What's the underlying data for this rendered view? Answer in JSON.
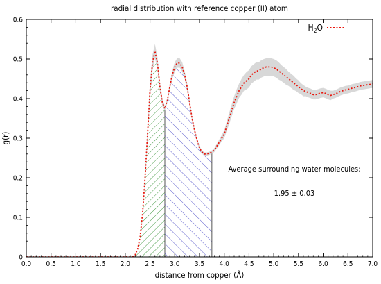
{
  "chart_data": {
    "type": "line",
    "title": "radial distribution with reference copper (II) atom",
    "xlabel": "distance from copper (Å)",
    "ylabel": "g(r)",
    "xlim": [
      0.0,
      7.0
    ],
    "ylim": [
      0.0,
      0.6
    ],
    "xticks": [
      "0.0",
      "0.5",
      "1.0",
      "1.5",
      "2.0",
      "2.5",
      "3.0",
      "3.5",
      "4.0",
      "4.5",
      "5.0",
      "5.5",
      "6.0",
      "6.5",
      "7.0"
    ],
    "yticks": [
      "0",
      "0.1",
      "0.2",
      "0.3",
      "0.4",
      "0.5",
      "0.6"
    ],
    "grid": false,
    "legend_position": "top-right",
    "series": [
      {
        "name": "H2O",
        "color": "#e8160c",
        "linestyle": "dotted",
        "x": [
          0.0,
          0.5,
          1.0,
          1.5,
          2.0,
          2.15,
          2.2,
          2.25,
          2.3,
          2.35,
          2.4,
          2.45,
          2.5,
          2.55,
          2.6,
          2.65,
          2.7,
          2.75,
          2.8,
          2.85,
          2.9,
          2.95,
          3.0,
          3.05,
          3.1,
          3.15,
          3.2,
          3.25,
          3.3,
          3.35,
          3.4,
          3.45,
          3.5,
          3.55,
          3.6,
          3.65,
          3.7,
          3.75,
          3.8,
          3.85,
          3.9,
          3.95,
          4.0,
          4.05,
          4.1,
          4.15,
          4.2,
          4.25,
          4.3,
          4.35,
          4.4,
          4.45,
          4.5,
          4.55,
          4.6,
          4.65,
          4.7,
          4.75,
          4.8,
          4.85,
          4.9,
          4.95,
          5.0,
          5.05,
          5.1,
          5.15,
          5.2,
          5.25,
          5.3,
          5.35,
          5.4,
          5.45,
          5.5,
          5.55,
          5.6,
          5.65,
          5.7,
          5.75,
          5.8,
          5.85,
          5.9,
          5.95,
          6.0,
          6.05,
          6.1,
          6.15,
          6.2,
          6.25,
          6.3,
          6.35,
          6.4,
          6.45,
          6.5,
          6.55,
          6.6,
          6.65,
          6.7,
          6.75,
          6.8,
          6.85,
          6.9,
          6.95,
          7.0
        ],
        "y": [
          0.0,
          0.0,
          0.0,
          0.0,
          0.0,
          0.001,
          0.005,
          0.02,
          0.05,
          0.11,
          0.2,
          0.31,
          0.42,
          0.49,
          0.52,
          0.49,
          0.43,
          0.39,
          0.375,
          0.395,
          0.43,
          0.46,
          0.48,
          0.49,
          0.49,
          0.48,
          0.46,
          0.43,
          0.39,
          0.35,
          0.32,
          0.295,
          0.275,
          0.265,
          0.26,
          0.26,
          0.262,
          0.265,
          0.27,
          0.28,
          0.29,
          0.3,
          0.31,
          0.33,
          0.35,
          0.37,
          0.39,
          0.405,
          0.42,
          0.43,
          0.44,
          0.445,
          0.45,
          0.46,
          0.465,
          0.47,
          0.47,
          0.475,
          0.478,
          0.48,
          0.48,
          0.48,
          0.478,
          0.475,
          0.47,
          0.465,
          0.46,
          0.455,
          0.45,
          0.445,
          0.44,
          0.435,
          0.43,
          0.425,
          0.42,
          0.418,
          0.415,
          0.413,
          0.41,
          0.41,
          0.412,
          0.414,
          0.415,
          0.413,
          0.41,
          0.408,
          0.41,
          0.412,
          0.415,
          0.418,
          0.42,
          0.422,
          0.423,
          0.425,
          0.427,
          0.428,
          0.43,
          0.432,
          0.433,
          0.434,
          0.435,
          0.436,
          0.437
        ],
        "band_halfwidth": [
          0,
          0,
          0,
          0,
          0,
          0,
          0,
          0,
          0,
          0,
          0.01,
          0.015,
          0.02,
          0.02,
          0.018,
          0.015,
          0.012,
          0.01,
          0.006,
          0.006,
          0.008,
          0.01,
          0.012,
          0.012,
          0.012,
          0.012,
          0.01,
          0.01,
          0.008,
          0.006,
          0.005,
          0.005,
          0.005,
          0.004,
          0.004,
          0.004,
          0.004,
          0.004,
          0.005,
          0.006,
          0.007,
          0.008,
          0.01,
          0.012,
          0.014,
          0.015,
          0.016,
          0.018,
          0.018,
          0.02,
          0.02,
          0.022,
          0.022,
          0.022,
          0.022,
          0.022,
          0.022,
          0.022,
          0.022,
          0.022,
          0.022,
          0.022,
          0.022,
          0.022,
          0.022,
          0.02,
          0.02,
          0.02,
          0.018,
          0.018,
          0.018,
          0.016,
          0.016,
          0.014,
          0.014,
          0.012,
          0.012,
          0.012,
          0.012,
          0.012,
          0.012,
          0.012,
          0.012,
          0.012,
          0.012,
          0.012,
          0.01,
          0.01,
          0.01,
          0.01,
          0.01,
          0.01,
          0.01,
          0.01,
          0.01,
          0.01,
          0.01,
          0.01,
          0.01,
          0.01,
          0.01,
          0.01,
          0.01
        ]
      }
    ],
    "shaded_regions": [
      {
        "from": 2.15,
        "to": 2.8,
        "hatch_color": "#2f8f2f"
      },
      {
        "from": 2.8,
        "to": 3.75,
        "hatch_color": "#4a4ac8"
      }
    ],
    "band_color": "#d8d8d8",
    "annotations": [
      "Average surrounding water molecules:",
      "1.95 ± 0.03"
    ]
  }
}
